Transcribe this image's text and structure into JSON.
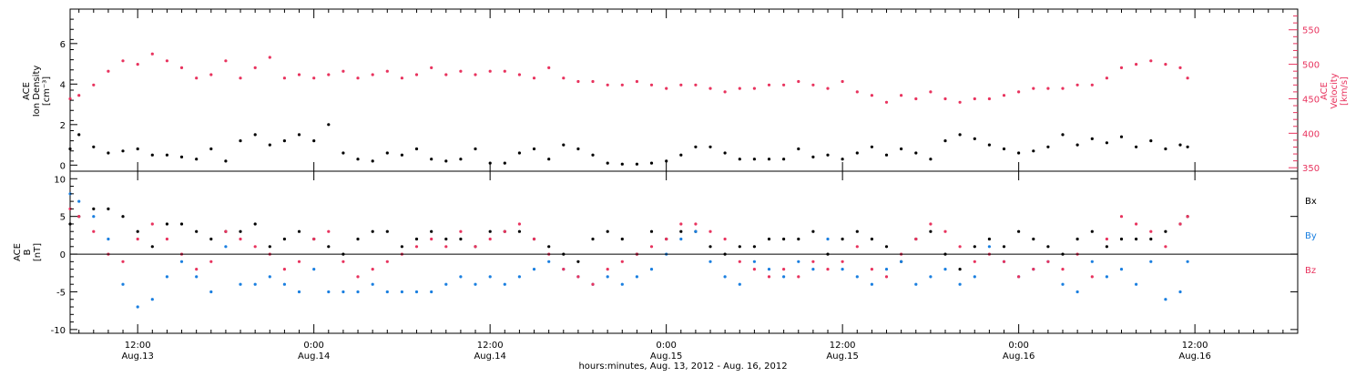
{
  "colors": {
    "black": "#000000",
    "red": "#e8335e",
    "blue": "#1a7fe0"
  },
  "xaxis": {
    "label": "hours:minutes, Aug. 13, 2012 - Aug. 16, 2012",
    "range_hours": [
      7.4,
      91.0
    ],
    "ticks": [
      {
        "hour": 12,
        "time": "12:00",
        "date": "Aug.13"
      },
      {
        "hour": 24,
        "time": "0:00",
        "date": "Aug.14"
      },
      {
        "hour": 36,
        "time": "12:00",
        "date": "Aug.14"
      },
      {
        "hour": 48,
        "time": "0:00",
        "date": "Aug.15"
      },
      {
        "hour": 60,
        "time": "12:00",
        "date": "Aug.15"
      },
      {
        "hour": 72,
        "time": "0:00",
        "date": "Aug.16"
      },
      {
        "hour": 84,
        "time": "12:00",
        "date": "Aug.16"
      }
    ]
  },
  "chart_data": [
    {
      "type": "scatter",
      "panel": "top",
      "ylabel_left": [
        "ACE",
        "Ion Density",
        "[cm⁻³]"
      ],
      "ylabel_right": [
        "ACE",
        "Velocity",
        "[km/s]"
      ],
      "ylim_left": [
        -0.3,
        7.7
      ],
      "yticks_left": [
        0,
        2,
        4,
        6
      ],
      "ylim_right": [
        345,
        580
      ],
      "yticks_right": [
        350,
        400,
        450,
        500,
        550
      ],
      "series": [
        {
          "axis": "right",
          "color": "#e8335e",
          "x": [
            7.4,
            8.0,
            9.0,
            10.0,
            11.0,
            12.0,
            13.0,
            14.0,
            15.0,
            16.0,
            17.0,
            18.0,
            19.0,
            20.0,
            21.0,
            22.0,
            23.0,
            24.0,
            25.0,
            26.0,
            27.0,
            28.0,
            29.0,
            30.0,
            31.0,
            32.0,
            33.0,
            34.0,
            35.0,
            36.0,
            37.0,
            38.0,
            39.0,
            40.0,
            41.0,
            42.0,
            43.0,
            44.0,
            45.0,
            46.0,
            47.0,
            48.0,
            49.0,
            50.0,
            51.0,
            52.0,
            53.0,
            54.0,
            55.0,
            56.0,
            57.0,
            58.0,
            59.0,
            60.0,
            61.0,
            62.0,
            63.0,
            64.0,
            65.0,
            66.0,
            67.0,
            68.0,
            69.0,
            70.0,
            71.0,
            72.0,
            73.0,
            74.0,
            75.0,
            76.0,
            77.0,
            78.0,
            79.0,
            80.0,
            81.0,
            82.0,
            83.0,
            83.5
          ],
          "y": [
            450,
            455,
            470,
            490,
            505,
            500,
            515,
            505,
            495,
            480,
            485,
            505,
            480,
            495,
            510,
            480,
            485,
            480,
            485,
            490,
            480,
            485,
            490,
            480,
            485,
            495,
            485,
            490,
            485,
            490,
            490,
            485,
            480,
            495,
            480,
            475,
            475,
            470,
            470,
            475,
            470,
            465,
            470,
            470,
            465,
            460,
            465,
            465,
            470,
            470,
            475,
            470,
            465,
            475,
            460,
            455,
            445,
            455,
            450,
            460,
            450,
            445,
            450,
            450,
            455,
            460,
            465,
            465,
            465,
            470,
            470,
            480,
            495,
            500,
            505,
            500,
            495,
            480
          ]
        },
        {
          "axis": "left",
          "color": "#000000",
          "x": [
            7.4,
            8.0,
            9.0,
            10.0,
            11.0,
            12.0,
            13.0,
            14.0,
            15.0,
            16.0,
            17.0,
            18.0,
            19.0,
            20.0,
            21.0,
            22.0,
            23.0,
            24.0,
            25.0,
            26.0,
            27.0,
            28.0,
            29.0,
            30.0,
            31.0,
            32.0,
            33.0,
            34.0,
            35.0,
            36.0,
            37.0,
            38.0,
            39.0,
            40.0,
            41.0,
            42.0,
            43.0,
            44.0,
            45.0,
            46.0,
            47.0,
            48.0,
            49.0,
            50.0,
            51.0,
            52.0,
            53.0,
            54.0,
            55.0,
            56.0,
            57.0,
            58.0,
            59.0,
            60.0,
            61.0,
            62.0,
            63.0,
            64.0,
            65.0,
            66.0,
            67.0,
            68.0,
            69.0,
            70.0,
            71.0,
            72.0,
            73.0,
            74.0,
            75.0,
            76.0,
            77.0,
            78.0,
            79.0,
            80.0,
            81.0,
            82.0,
            83.0,
            83.5
          ],
          "y": [
            0.8,
            1.5,
            0.9,
            0.6,
            0.7,
            0.8,
            0.5,
            0.5,
            0.4,
            0.3,
            0.8,
            0.2,
            1.2,
            1.5,
            1.0,
            1.2,
            1.5,
            1.2,
            2.0,
            0.6,
            0.3,
            0.2,
            0.6,
            0.5,
            0.8,
            0.3,
            0.2,
            0.3,
            0.8,
            0.1,
            0.1,
            0.6,
            0.8,
            0.3,
            1.0,
            0.8,
            0.5,
            0.1,
            0.05,
            0.05,
            0.1,
            0.2,
            0.5,
            0.9,
            0.9,
            0.6,
            0.3,
            0.3,
            0.3,
            0.3,
            0.8,
            0.4,
            0.5,
            0.3,
            0.6,
            0.9,
            0.5,
            0.8,
            0.6,
            0.3,
            1.2,
            1.5,
            1.3,
            1.0,
            0.8,
            0.6,
            0.7,
            0.9,
            1.5,
            1.0,
            1.3,
            1.1,
            1.4,
            0.9,
            1.2,
            0.8,
            1.0,
            0.9
          ]
        }
      ]
    },
    {
      "type": "scatter",
      "panel": "bottom",
      "ylabel_left": [
        "ACE",
        "B",
        "[nT]"
      ],
      "ylim": [
        -10.5,
        11
      ],
      "yticks": [
        -10,
        -5,
        0,
        5,
        10
      ],
      "zero_line": true,
      "series": [
        {
          "name": "Bx",
          "color": "#000000",
          "x": [
            7.4,
            8.0,
            9.0,
            10.0,
            11.0,
            12.0,
            13.0,
            14.0,
            15.0,
            16.0,
            17.0,
            18.0,
            19.0,
            20.0,
            21.0,
            22.0,
            23.0,
            24.0,
            25.0,
            26.0,
            27.0,
            28.0,
            29.0,
            30.0,
            31.0,
            32.0,
            33.0,
            34.0,
            35.0,
            36.0,
            37.0,
            38.0,
            39.0,
            40.0,
            41.0,
            42.0,
            43.0,
            44.0,
            45.0,
            46.0,
            47.0,
            48.0,
            49.0,
            50.0,
            51.0,
            52.0,
            53.0,
            54.0,
            55.0,
            56.0,
            57.0,
            58.0,
            59.0,
            60.0,
            61.0,
            62.0,
            63.0,
            64.0,
            65.0,
            66.0,
            67.0,
            68.0,
            69.0,
            70.0,
            71.0,
            72.0,
            73.0,
            74.0,
            75.0,
            76.0,
            77.0,
            78.0,
            79.0,
            80.0,
            81.0,
            82.0,
            83.0,
            83.5
          ],
          "y": [
            4,
            5,
            6,
            6,
            5,
            3,
            1,
            4,
            4,
            3,
            2,
            3,
            3,
            4,
            1,
            2,
            3,
            2,
            1,
            0,
            2,
            3,
            3,
            1,
            2,
            3,
            2,
            2,
            1,
            3,
            3,
            3,
            2,
            1,
            0,
            -1,
            2,
            3,
            2,
            0,
            3,
            2,
            3,
            3,
            1,
            0,
            1,
            1,
            2,
            2,
            2,
            3,
            0,
            2,
            3,
            2,
            1,
            -1,
            2,
            3,
            0,
            -2,
            1,
            2,
            1,
            3,
            2,
            1,
            0,
            2,
            3,
            1,
            2,
            2,
            2,
            3,
            4,
            5
          ]
        },
        {
          "name": "By",
          "color": "#1a7fe0",
          "x": [
            7.4,
            8.0,
            9.0,
            10.0,
            11.0,
            12.0,
            13.0,
            14.0,
            15.0,
            16.0,
            17.0,
            18.0,
            19.0,
            20.0,
            21.0,
            22.0,
            23.0,
            24.0,
            25.0,
            26.0,
            27.0,
            28.0,
            29.0,
            30.0,
            31.0,
            32.0,
            33.0,
            34.0,
            35.0,
            36.0,
            37.0,
            38.0,
            39.0,
            40.0,
            41.0,
            42.0,
            43.0,
            44.0,
            45.0,
            46.0,
            47.0,
            48.0,
            49.0,
            50.0,
            51.0,
            52.0,
            53.0,
            54.0,
            55.0,
            56.0,
            57.0,
            58.0,
            59.0,
            60.0,
            61.0,
            62.0,
            63.0,
            64.0,
            65.0,
            66.0,
            67.0,
            68.0,
            69.0,
            70.0,
            71.0,
            72.0,
            73.0,
            74.0,
            75.0,
            76.0,
            77.0,
            78.0,
            79.0,
            80.0,
            81.0,
            82.0,
            83.0,
            83.5
          ],
          "y": [
            8,
            7,
            5,
            2,
            -4,
            -7,
            -6,
            -3,
            -1,
            -3,
            -5,
            1,
            -4,
            -4,
            -3,
            -4,
            -5,
            -2,
            -5,
            -5,
            -5,
            -4,
            -5,
            -5,
            -5,
            -5,
            -4,
            -3,
            -4,
            -3,
            -4,
            -3,
            -2,
            -1,
            -2,
            -3,
            -4,
            -3,
            -4,
            -3,
            -2,
            0,
            2,
            3,
            -1,
            -3,
            -4,
            -1,
            -2,
            -3,
            -1,
            -2,
            2,
            -2,
            -3,
            -4,
            -2,
            -1,
            -4,
            -3,
            -2,
            -4,
            -3,
            1,
            -1,
            -3,
            -2,
            -1,
            -4,
            -5,
            -1,
            -3,
            -2,
            -4,
            -1,
            -6,
            -5,
            -1
          ]
        },
        {
          "name": "Bz",
          "color": "#e8335e",
          "x": [
            7.4,
            8.0,
            9.0,
            10.0,
            11.0,
            12.0,
            13.0,
            14.0,
            15.0,
            16.0,
            17.0,
            18.0,
            19.0,
            20.0,
            21.0,
            22.0,
            23.0,
            24.0,
            25.0,
            26.0,
            27.0,
            28.0,
            29.0,
            30.0,
            31.0,
            32.0,
            33.0,
            34.0,
            35.0,
            36.0,
            37.0,
            38.0,
            39.0,
            40.0,
            41.0,
            42.0,
            43.0,
            44.0,
            45.0,
            46.0,
            47.0,
            48.0,
            49.0,
            50.0,
            51.0,
            52.0,
            53.0,
            54.0,
            55.0,
            56.0,
            57.0,
            58.0,
            59.0,
            60.0,
            61.0,
            62.0,
            63.0,
            64.0,
            65.0,
            66.0,
            67.0,
            68.0,
            69.0,
            70.0,
            71.0,
            72.0,
            73.0,
            74.0,
            75.0,
            76.0,
            77.0,
            78.0,
            79.0,
            80.0,
            81.0,
            82.0,
            83.0,
            83.5
          ],
          "y": [
            6,
            5,
            3,
            0,
            -1,
            2,
            4,
            2,
            0,
            -2,
            -1,
            3,
            2,
            1,
            0,
            -2,
            -1,
            2,
            3,
            -1,
            -3,
            -2,
            -1,
            0,
            1,
            2,
            1,
            3,
            1,
            2,
            3,
            4,
            2,
            0,
            -2,
            -3,
            -4,
            -2,
            -1,
            0,
            1,
            2,
            4,
            4,
            3,
            2,
            -1,
            -2,
            -3,
            -2,
            -3,
            -1,
            -2,
            -1,
            1,
            -2,
            -3,
            0,
            2,
            4,
            3,
            1,
            -1,
            0,
            -1,
            -3,
            -2,
            -1,
            -2,
            0,
            -3,
            2,
            5,
            4,
            3,
            1,
            4,
            5
          ]
        }
      ]
    }
  ]
}
